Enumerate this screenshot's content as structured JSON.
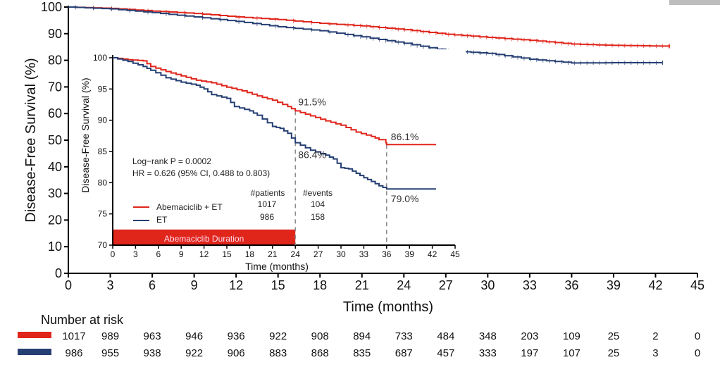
{
  "chart_data": [
    {
      "type": "line",
      "subtype": "kaplan-meier",
      "title": "",
      "xlabel": "Time (months)",
      "ylabel": "Disease-Free Survival (%)",
      "xlim": [
        0,
        45
      ],
      "ylim": [
        0,
        100
      ],
      "xticks": [
        0,
        3,
        6,
        9,
        12,
        15,
        18,
        21,
        24,
        27,
        30,
        33,
        36,
        39,
        42,
        45
      ],
      "yticks": [
        0,
        10,
        20,
        30,
        40,
        50,
        60,
        70,
        80,
        90,
        100
      ],
      "grid": false,
      "series": [
        {
          "name": "Abemaciclib + ET",
          "color": "#e0251b",
          "x": [
            0,
            3,
            6,
            9,
            12,
            15,
            18,
            21,
            24,
            27,
            30,
            33,
            36,
            39,
            43
          ],
          "y": [
            100,
            99.5,
            98.5,
            97.6,
            96.3,
            95.3,
            93.9,
            92.9,
            91.5,
            89.8,
            88.6,
            87.5,
            86.1,
            85.6,
            85.3
          ]
        },
        {
          "name": "ET",
          "color": "#253f73",
          "x": [
            0,
            3,
            6,
            9,
            12,
            15,
            18,
            21,
            24,
            27,
            30,
            33,
            36,
            39,
            42.5
          ],
          "y": [
            100,
            99.3,
            97.9,
            96.3,
            94.6,
            92.6,
            91.1,
            88.8,
            86.4,
            83.6,
            82.6,
            80.4,
            79.0,
            79.1,
            79.1
          ]
        }
      ],
      "number_at_risk": {
        "title": "Number at risk",
        "rows": [
          {
            "name": "Abemaciclib + ET",
            "color": "#e0251b",
            "values": [
              1017,
              989,
              963,
              946,
              936,
              922,
              908,
              894,
              733,
              484,
              348,
              203,
              109,
              25,
              2,
              0
            ]
          },
          {
            "name": "ET",
            "color": "#253f73",
            "values": [
              986,
              955,
              938,
              922,
              906,
              883,
              868,
              835,
              687,
              457,
              333,
              197,
              107,
              25,
              3,
              0
            ]
          }
        ]
      }
    },
    {
      "type": "line",
      "subtype": "kaplan-meier-inset",
      "xlabel": "Time (months)",
      "ylabel": "Disease-Free Survival (%)",
      "xlim": [
        0,
        45
      ],
      "ylim": [
        70,
        100
      ],
      "xticks": [
        0,
        3,
        6,
        9,
        12,
        15,
        18,
        21,
        24,
        27,
        30,
        33,
        36,
        39,
        42,
        45
      ],
      "yticks": [
        70,
        75,
        80,
        85,
        90,
        95,
        100
      ],
      "series": [
        {
          "name": "Abemaciclib + ET",
          "color": "#e0251b",
          "x": [
            0,
            2,
            4,
            5,
            7,
            9,
            11,
            13,
            15,
            17,
            19,
            21,
            23,
            24,
            26,
            28,
            30,
            32,
            34,
            35,
            35.9,
            36,
            42.5
          ],
          "y": [
            100,
            99.7,
            99.5,
            98.6,
            97.8,
            97.1,
            96.4,
            96.0,
            95.3,
            94.7,
            93.9,
            93.2,
            92.2,
            91.5,
            90.7,
            89.9,
            89.2,
            88.1,
            87.4,
            86.9,
            86.4,
            86.1,
            86.1
          ]
        },
        {
          "name": "ET",
          "color": "#253f73",
          "x": [
            0,
            2,
            4,
            5,
            7,
            9,
            11,
            12,
            13,
            15,
            16,
            18,
            19,
            21,
            22,
            23,
            24,
            26,
            28,
            29,
            30,
            31,
            32,
            33,
            34,
            35,
            36,
            42.5
          ],
          "y": [
            100,
            99.4,
            98.6,
            98.0,
            96.8,
            96.1,
            95.6,
            95.0,
            94.1,
            93.5,
            92.2,
            91.5,
            90.8,
            89.0,
            88.7,
            87.9,
            86.4,
            85.2,
            84.4,
            83.8,
            82.4,
            82.2,
            81.5,
            80.8,
            80.2,
            79.5,
            79.0,
            79.0
          ]
        }
      ],
      "reference_lines_x": [
        24,
        36
      ],
      "annotations": [
        {
          "text": "91.5%",
          "series": "Abemaciclib + ET",
          "x": 24,
          "y": 91.5
        },
        {
          "text": "86.4%",
          "series": "ET",
          "x": 24,
          "y": 86.4
        },
        {
          "text": "86.1%",
          "series": "Abemaciclib + ET",
          "x": 36,
          "y": 86.1
        },
        {
          "text": "79.0%",
          "series": "ET",
          "x": 36,
          "y": 79.0
        }
      ],
      "stats": {
        "logrank": "Log−rank P = 0.0002",
        "hr": "HR = 0.626 (95% CI, 0.488 to 0.803)"
      },
      "legend": {
        "header_patients": "#patients",
        "header_events": "#events",
        "rows": [
          {
            "name": "Abemaciclib + ET",
            "patients": "1017",
            "events": "104",
            "color": "#e0251b"
          },
          {
            "name": "ET",
            "patients": "986",
            "events": "158",
            "color": "#253f73"
          }
        ]
      },
      "duration_bar": {
        "label": "Abemaciclib Duration",
        "x_start": 0,
        "x_end": 24,
        "color": "#e0251b"
      }
    }
  ]
}
